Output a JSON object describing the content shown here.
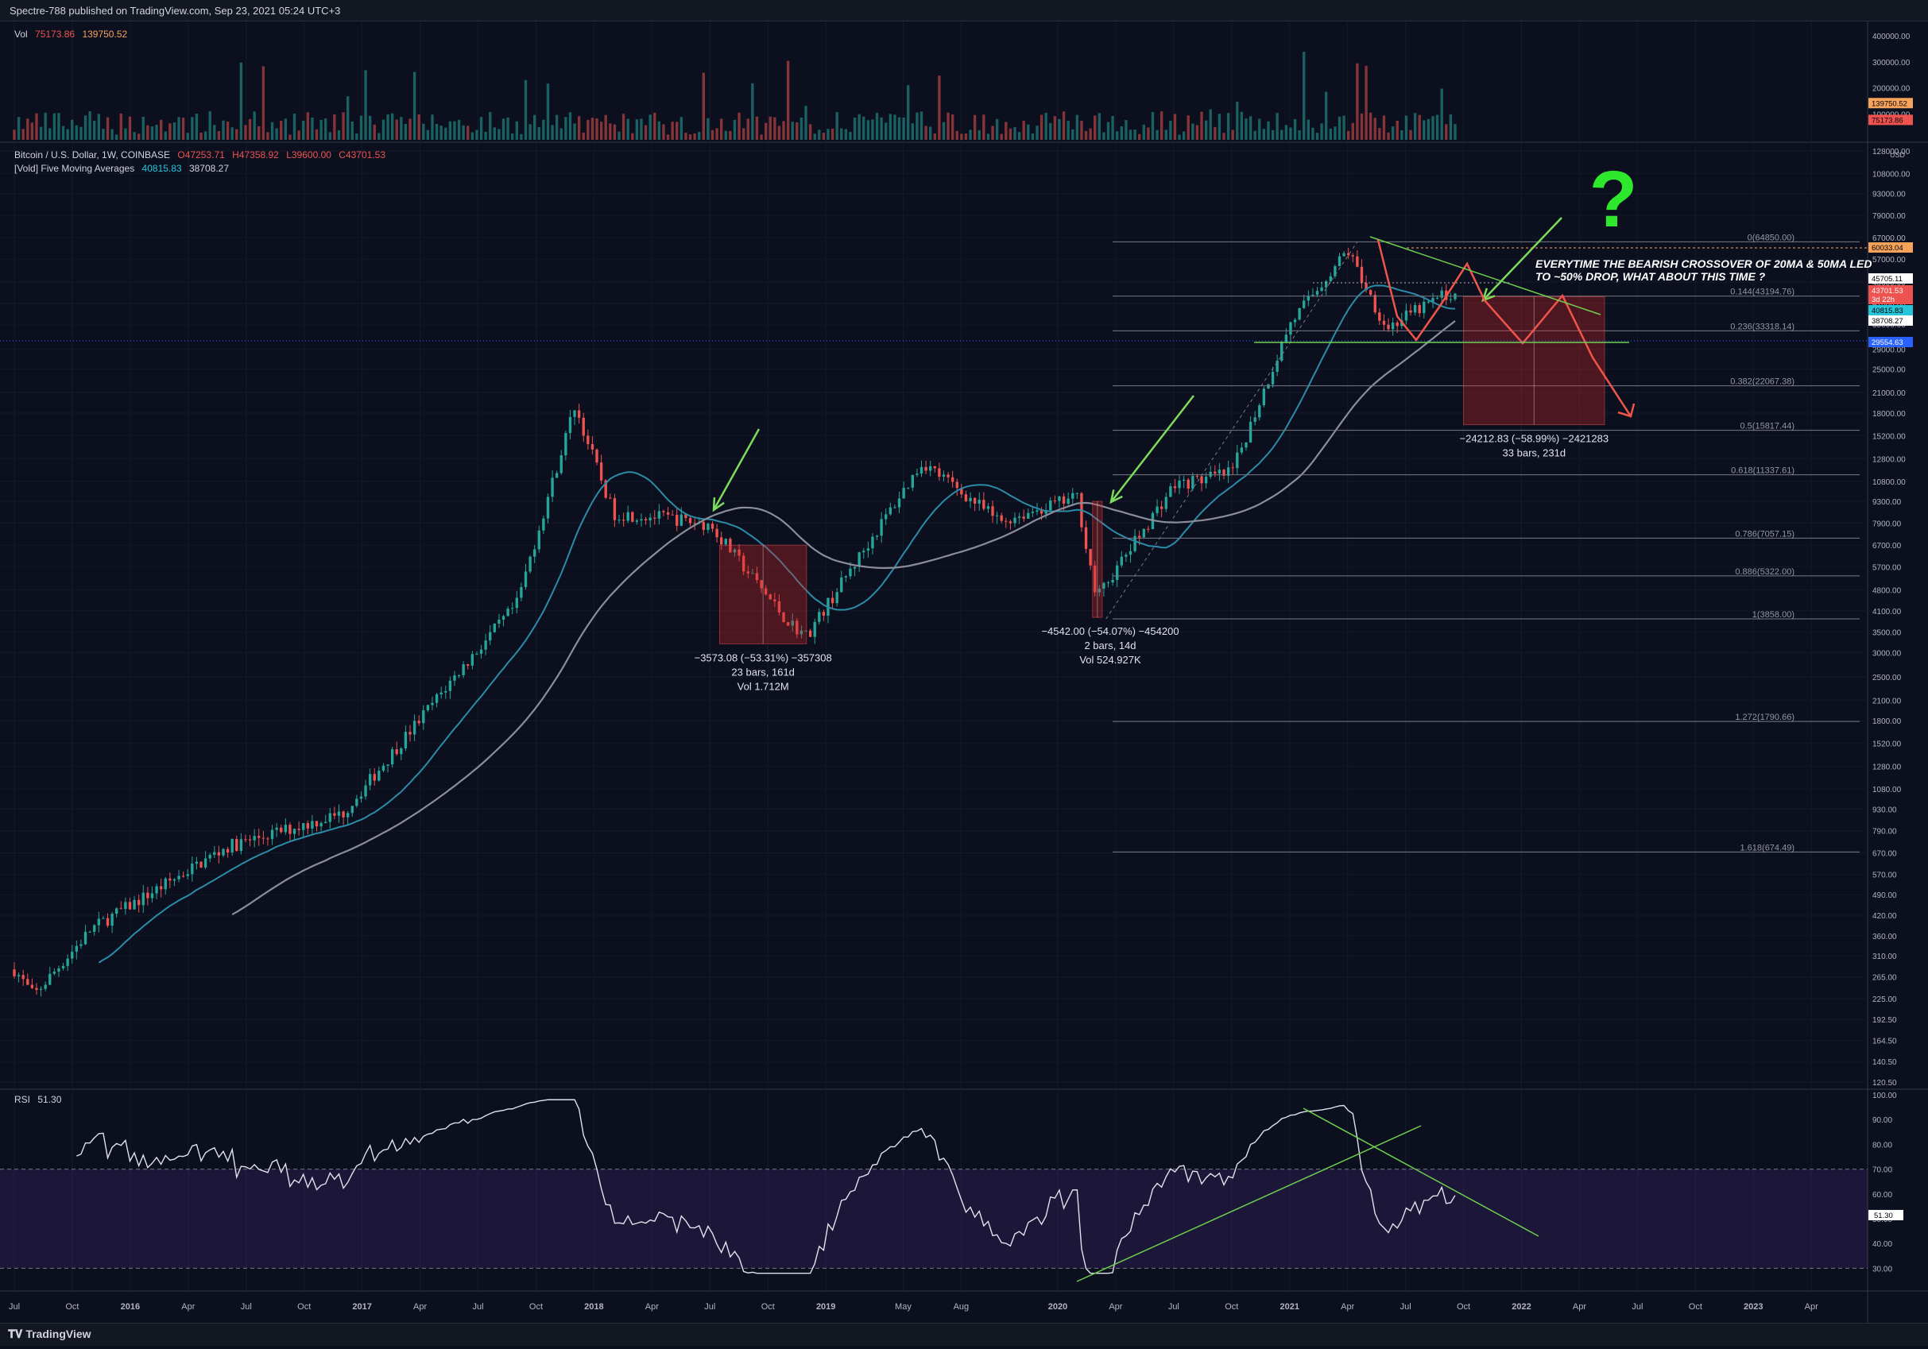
{
  "header": {
    "published": "Spectre-788 published on TradingView.com, Sep 23, 2021 05:24 UTC+3"
  },
  "footer": {
    "brand": "TradingView",
    "brand_icon": "tradingview-logo-icon"
  },
  "volume_pane": {
    "label": "Vol",
    "value1": "75173.86",
    "value2": "139750.52",
    "axis_ticks": [
      "400000.00",
      "300000.00",
      "200000.00",
      "100000.00"
    ],
    "badges": [
      {
        "text": "139750.52",
        "color": "#f7a35c"
      },
      {
        "text": "75173.86",
        "color": "#ef5350"
      }
    ]
  },
  "price_pane": {
    "symbol": "Bitcoin / U.S. Dollar, 1W, COINBASE",
    "ohlc": {
      "o": "O47253.71",
      "h": "H47358.92",
      "l": "L39600.00",
      "c": "C43701.53"
    },
    "indicator": "[Vold] Five Moving Averages",
    "ma1": "40815.83",
    "ma2": "38708.27",
    "currency": "USD",
    "axis_ticks": [
      "128000.00",
      "108000.00",
      "93000.00",
      "79000.00",
      "67000.00",
      "57000.00",
      "48000.00",
      "41000.00",
      "35000.00",
      "29000.00",
      "25000.00",
      "21000.00",
      "18000.00",
      "15200.00",
      "12800.00",
      "10800.00",
      "9300.00",
      "7900.00",
      "6700.00",
      "5700.00",
      "4800.00",
      "4100.00",
      "3500.00",
      "3000.00",
      "2500.00",
      "2100.00",
      "1800.00",
      "1520.00",
      "1280.00",
      "1080.00",
      "930.00",
      "790.00",
      "670.00",
      "570.00",
      "490.00",
      "420.00",
      "360.00",
      "310.00",
      "265.00",
      "225.00",
      "192.50",
      "164.50",
      "140.50",
      "120.50"
    ],
    "badges": [
      {
        "text": "60033.04",
        "color": "#f7a35c",
        "fg": "#000000"
      },
      {
        "text": "45705.11",
        "color": "#ffffff",
        "fg": "#000000"
      },
      {
        "text": "43701.53",
        "color": "#ef5350",
        "fg": "#ffffff"
      },
      {
        "text": "3d 22h",
        "color": "#ef5350",
        "fg": "#ffffff"
      },
      {
        "text": "40815.83",
        "color": "#26c6da",
        "fg": "#000000"
      },
      {
        "text": "38708.27",
        "color": "#ffffff",
        "fg": "#000000"
      },
      {
        "text": "29554.63",
        "color": "#2962ff",
        "fg": "#ffffff"
      }
    ],
    "fib_levels": [
      {
        "ratio": "0",
        "label": "0(64850.00)",
        "price": 64850
      },
      {
        "ratio": "0.144",
        "label": "0.144(43194.76)",
        "price": 43194.76
      },
      {
        "ratio": "0.236",
        "label": "0.236(33318.14)",
        "price": 33318.14
      },
      {
        "ratio": "0.382",
        "label": "0.382(22067.38)",
        "price": 22067.38
      },
      {
        "ratio": "0.5",
        "label": "0.5(15817.44)",
        "price": 15817.44
      },
      {
        "ratio": "0.618",
        "label": "0.618(11337.61)",
        "price": 11337.61
      },
      {
        "ratio": "0.786",
        "label": "0.786(7057.15)",
        "price": 7057.15
      },
      {
        "ratio": "0.886",
        "label": "0.886(5322.00)",
        "price": 5322
      },
      {
        "ratio": "1",
        "label": "1(3858.00)",
        "price": 3858
      },
      {
        "ratio": "1.272",
        "label": "1.272(1790.66)",
        "price": 1790.66
      },
      {
        "ratio": "1.618",
        "label": "1.618(674.49)",
        "price": 674.49
      }
    ],
    "annotation": {
      "line1": "EVERYTIME THE BEARISH CROSSOVER OF 20MA & 50MA LED",
      "line2": "TO ~50% DROP, WHAT ABOUT THIS TIME ?",
      "question": "?"
    },
    "measures": [
      {
        "line1": "−3573.08 (−53.31%) −357308",
        "line2": "23 bars, 161d",
        "line3": "Vol 1.712M"
      },
      {
        "line1": "−4542.00 (−54.07%) −454200",
        "line2": "2 bars, 14d",
        "line3": "Vol 524.927K"
      },
      {
        "line1": "−24212.83 (−58.99%) −2421283",
        "line2": "33 bars, 231d",
        "line3": ""
      }
    ]
  },
  "rsi_pane": {
    "label": "RSI",
    "value": "51.30",
    "axis_ticks": [
      "100.00",
      "90.00",
      "80.00",
      "70.00",
      "60.00",
      "50.00",
      "40.00",
      "30.00"
    ]
  },
  "time_axis": [
    "Jul",
    "Oct",
    "2016",
    "Apr",
    "Jul",
    "Oct",
    "2017",
    "Apr",
    "Jul",
    "Oct",
    "2018",
    "Apr",
    "Jul",
    "Oct",
    "2019",
    "May",
    "Aug",
    "2020",
    "Apr",
    "Jul",
    "Oct",
    "2021",
    "Apr",
    "Jul",
    "Oct",
    "2022",
    "Apr",
    "Jul",
    "Oct",
    "2023",
    "Apr"
  ],
  "chart_data": {
    "type": "candlestick",
    "x_range": [
      "2015-07",
      "2023-06"
    ],
    "y_scale": "log",
    "ylim": [
      120,
      128000
    ],
    "key_points": [
      {
        "date": "2015-07",
        "close": 280
      },
      {
        "date": "2015-08",
        "close": 230
      },
      {
        "date": "2015-11",
        "close": 380
      },
      {
        "date": "2016-06",
        "close": 700
      },
      {
        "date": "2016-12",
        "close": 900
      },
      {
        "date": "2017-06",
        "close": 2600
      },
      {
        "date": "2017-09",
        "close": 4300
      },
      {
        "date": "2017-12",
        "close": 19000
      },
      {
        "date": "2018-02",
        "close": 8500
      },
      {
        "date": "2018-05",
        "close": 8200
      },
      {
        "date": "2018-07",
        "close": 7800
      },
      {
        "date": "2018-11",
        "close": 3800
      },
      {
        "date": "2018-12",
        "close": 3400
      },
      {
        "date": "2019-06",
        "close": 12500
      },
      {
        "date": "2019-10",
        "close": 8000
      },
      {
        "date": "2020-02",
        "close": 9600
      },
      {
        "date": "2020-03",
        "close": 4500
      },
      {
        "date": "2020-07",
        "close": 10500
      },
      {
        "date": "2020-10",
        "close": 11500
      },
      {
        "date": "2021-01",
        "close": 35000
      },
      {
        "date": "2021-04",
        "close": 61000
      },
      {
        "date": "2021-06",
        "close": 34000
      },
      {
        "date": "2021-09",
        "close": 43701
      }
    ],
    "series": [
      {
        "name": "[Vold] Five Moving Averages",
        "value": "40815.83",
        "color": "#26c6da"
      },
      {
        "name": "[Vold] Five Moving Averages",
        "value": "38708.27",
        "color": "#b0b3bd"
      }
    ],
    "rsi": {
      "overbought": 70,
      "oversold": 30,
      "last": 51.3
    }
  }
}
